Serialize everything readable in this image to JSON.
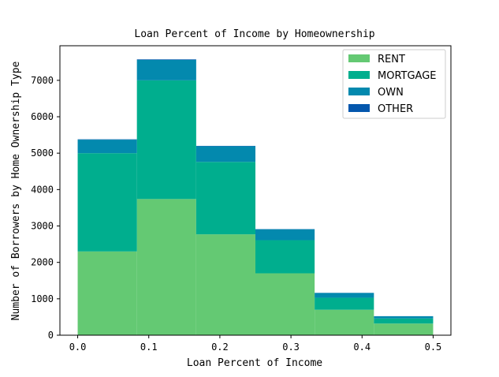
{
  "chart_data": {
    "type": "bar",
    "stacked": true,
    "title": "Loan Percent of Income by Homeownership",
    "xlabel": "Loan Percent of Income",
    "ylabel": "Number of Borrowers by Home Ownership Type",
    "bin_edges": [
      0.0,
      0.0833,
      0.1667,
      0.25,
      0.3333,
      0.4167,
      0.5
    ],
    "xlim": [
      -0.025,
      0.525
    ],
    "ylim": [
      0,
      7950
    ],
    "xticks": [
      0.0,
      0.1,
      0.2,
      0.3,
      0.4,
      0.5
    ],
    "xtick_labels": [
      "0.0",
      "0.1",
      "0.2",
      "0.3",
      "0.4",
      "0.5"
    ],
    "yticks": [
      0,
      1000,
      2000,
      3000,
      4000,
      5000,
      6000,
      7000
    ],
    "ytick_labels": [
      "0",
      "1000",
      "2000",
      "3000",
      "4000",
      "5000",
      "6000",
      "7000"
    ],
    "grid": false,
    "legend_position": "upper right",
    "series": [
      {
        "name": "RENT",
        "color": "#64c973",
        "values": [
          2300,
          3740,
          2770,
          1700,
          700,
          320
        ]
      },
      {
        "name": "MORTGAGE",
        "color": "#00ae8e",
        "values": [
          2700,
          3260,
          1990,
          910,
          330,
          140
        ]
      },
      {
        "name": "OWN",
        "color": "#0389ae",
        "values": [
          370,
          560,
          430,
          300,
          130,
          60
        ]
      },
      {
        "name": "OTHER",
        "color": "#0457ad",
        "values": [
          10,
          15,
          10,
          5,
          3,
          2
        ]
      }
    ]
  }
}
